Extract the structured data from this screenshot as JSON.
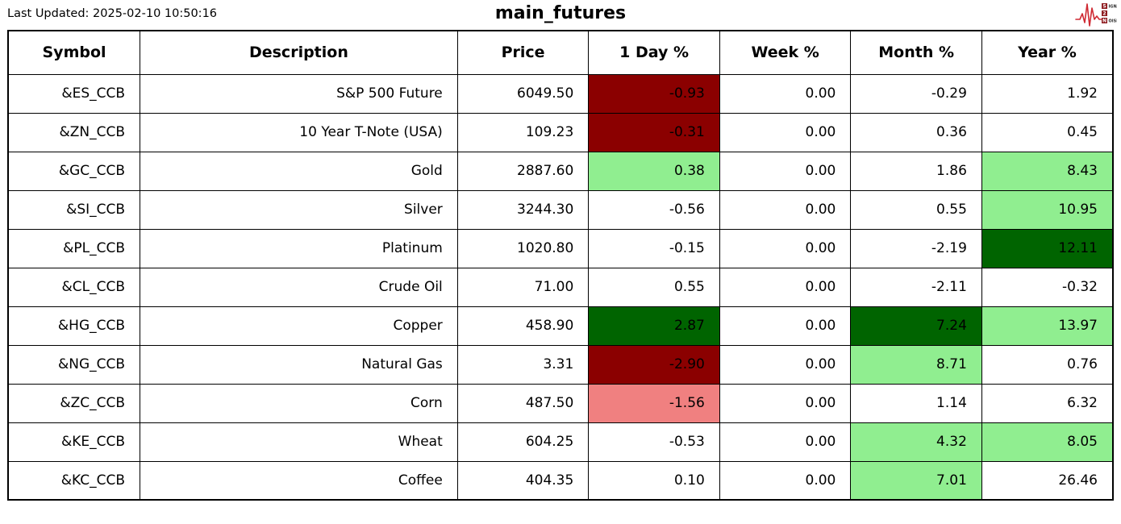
{
  "header": {
    "last_updated": "Last Updated: 2025-02-10 10:50:16"
  },
  "logo": {
    "name": "signal-2-noise",
    "line1_boxed": "S",
    "line1_rest": "IGNAL",
    "line2_boxed": "2",
    "line3_boxed": "N",
    "line3_rest": "OISE",
    "waveform_color": "#cf2a33",
    "box_color": "#8e1b1f",
    "text_color": "#2a2a2a"
  },
  "chart_data": {
    "type": "table",
    "title": "main_futures",
    "cell_colors": {
      "strong_negative": "#8b0000",
      "mild_negative": "#f08080",
      "strong_positive": "#006400",
      "mild_positive": "#90ee90",
      "neutral": "#ffffff"
    },
    "columns": [
      {
        "key": "symbol",
        "label": "Symbol"
      },
      {
        "key": "description",
        "label": "Description"
      },
      {
        "key": "price",
        "label": "Price"
      },
      {
        "key": "day",
        "label": "1 Day %"
      },
      {
        "key": "week",
        "label": "Week %"
      },
      {
        "key": "month",
        "label": "Month %"
      },
      {
        "key": "year",
        "label": "Year %"
      }
    ],
    "rows": [
      {
        "symbol": "&ES_CCB",
        "description": "S&P 500 Future",
        "price": "6049.50",
        "day": "-0.93",
        "week": "0.00",
        "month": "-0.29",
        "year": "1.92",
        "bg": {
          "day": "strong_negative"
        }
      },
      {
        "symbol": "&ZN_CCB",
        "description": "10 Year T-Note (USA)",
        "price": "109.23",
        "day": "-0.31",
        "week": "0.00",
        "month": "0.36",
        "year": "0.45",
        "bg": {
          "day": "strong_negative"
        }
      },
      {
        "symbol": "&GC_CCB",
        "description": "Gold",
        "price": "2887.60",
        "day": "0.38",
        "week": "0.00",
        "month": "1.86",
        "year": "8.43",
        "bg": {
          "day": "mild_positive",
          "year": "mild_positive"
        }
      },
      {
        "symbol": "&SI_CCB",
        "description": "Silver",
        "price": "3244.30",
        "day": "-0.56",
        "week": "0.00",
        "month": "0.55",
        "year": "10.95",
        "bg": {
          "year": "mild_positive"
        }
      },
      {
        "symbol": "&PL_CCB",
        "description": "Platinum",
        "price": "1020.80",
        "day": "-0.15",
        "week": "0.00",
        "month": "-2.19",
        "year": "12.11",
        "bg": {
          "year": "strong_positive"
        }
      },
      {
        "symbol": "&CL_CCB",
        "description": "Crude Oil",
        "price": "71.00",
        "day": "0.55",
        "week": "0.00",
        "month": "-2.11",
        "year": "-0.32",
        "bg": {}
      },
      {
        "symbol": "&HG_CCB",
        "description": "Copper",
        "price": "458.90",
        "day": "2.87",
        "week": "0.00",
        "month": "7.24",
        "year": "13.97",
        "bg": {
          "day": "strong_positive",
          "month": "strong_positive",
          "year": "mild_positive"
        }
      },
      {
        "symbol": "&NG_CCB",
        "description": "Natural Gas",
        "price": "3.31",
        "day": "-2.90",
        "week": "0.00",
        "month": "8.71",
        "year": "0.76",
        "bg": {
          "day": "strong_negative",
          "month": "mild_positive"
        }
      },
      {
        "symbol": "&ZC_CCB",
        "description": "Corn",
        "price": "487.50",
        "day": "-1.56",
        "week": "0.00",
        "month": "1.14",
        "year": "6.32",
        "bg": {
          "day": "mild_negative"
        }
      },
      {
        "symbol": "&KE_CCB",
        "description": "Wheat",
        "price": "604.25",
        "day": "-0.53",
        "week": "0.00",
        "month": "4.32",
        "year": "8.05",
        "bg": {
          "month": "mild_positive",
          "year": "mild_positive"
        }
      },
      {
        "symbol": "&KC_CCB",
        "description": "Coffee",
        "price": "404.35",
        "day": "0.10",
        "week": "0.00",
        "month": "7.01",
        "year": "26.46",
        "bg": {
          "month": "mild_positive"
        }
      }
    ]
  }
}
